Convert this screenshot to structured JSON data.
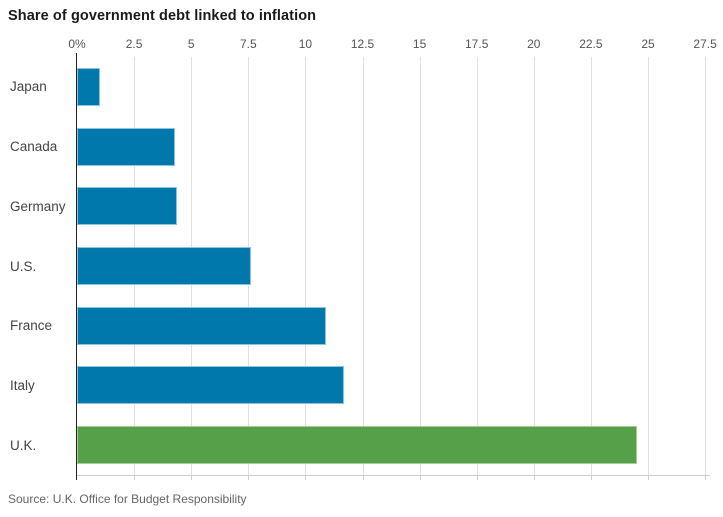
{
  "title": "Share of government debt linked to inflation",
  "source": "Source: U.K. Office for Budget Responsibility",
  "chart_data": {
    "type": "bar",
    "orientation": "horizontal",
    "title": "Share of government debt linked to inflation",
    "categories": [
      "Japan",
      "Canada",
      "Germany",
      "U.S.",
      "France",
      "Italy",
      "U.K."
    ],
    "values": [
      1.0,
      4.3,
      4.4,
      7.6,
      10.9,
      11.7,
      24.5
    ],
    "unit": "%",
    "xlim": [
      0,
      27.5
    ],
    "x_tick_labels": [
      "0%",
      "2.5",
      "5",
      "7.5",
      "10",
      "12.5",
      "15",
      "17.5",
      "20",
      "22.5",
      "25",
      "27.5"
    ],
    "x_tick_values": [
      0,
      2.5,
      5,
      7.5,
      10,
      12.5,
      15,
      17.5,
      20,
      22.5,
      25,
      27.5
    ],
    "grid": true,
    "legend": false,
    "highlight_category": "U.K.",
    "colors": {
      "bar_default": "#0078ab",
      "bar_default_stroke": "#8cc4de",
      "bar_highlight": "#55a048",
      "bar_highlight_stroke": "#aacd96",
      "axis_line": "#222222",
      "gridline": "#e0e0e0",
      "bottom_axis": "#cccccc",
      "title_text": "#1a1a1a",
      "tick_text": "#555555",
      "category_text": "#444444",
      "source_text": "#666666"
    },
    "source": "Source: U.K. Office for Budget Responsibility"
  }
}
